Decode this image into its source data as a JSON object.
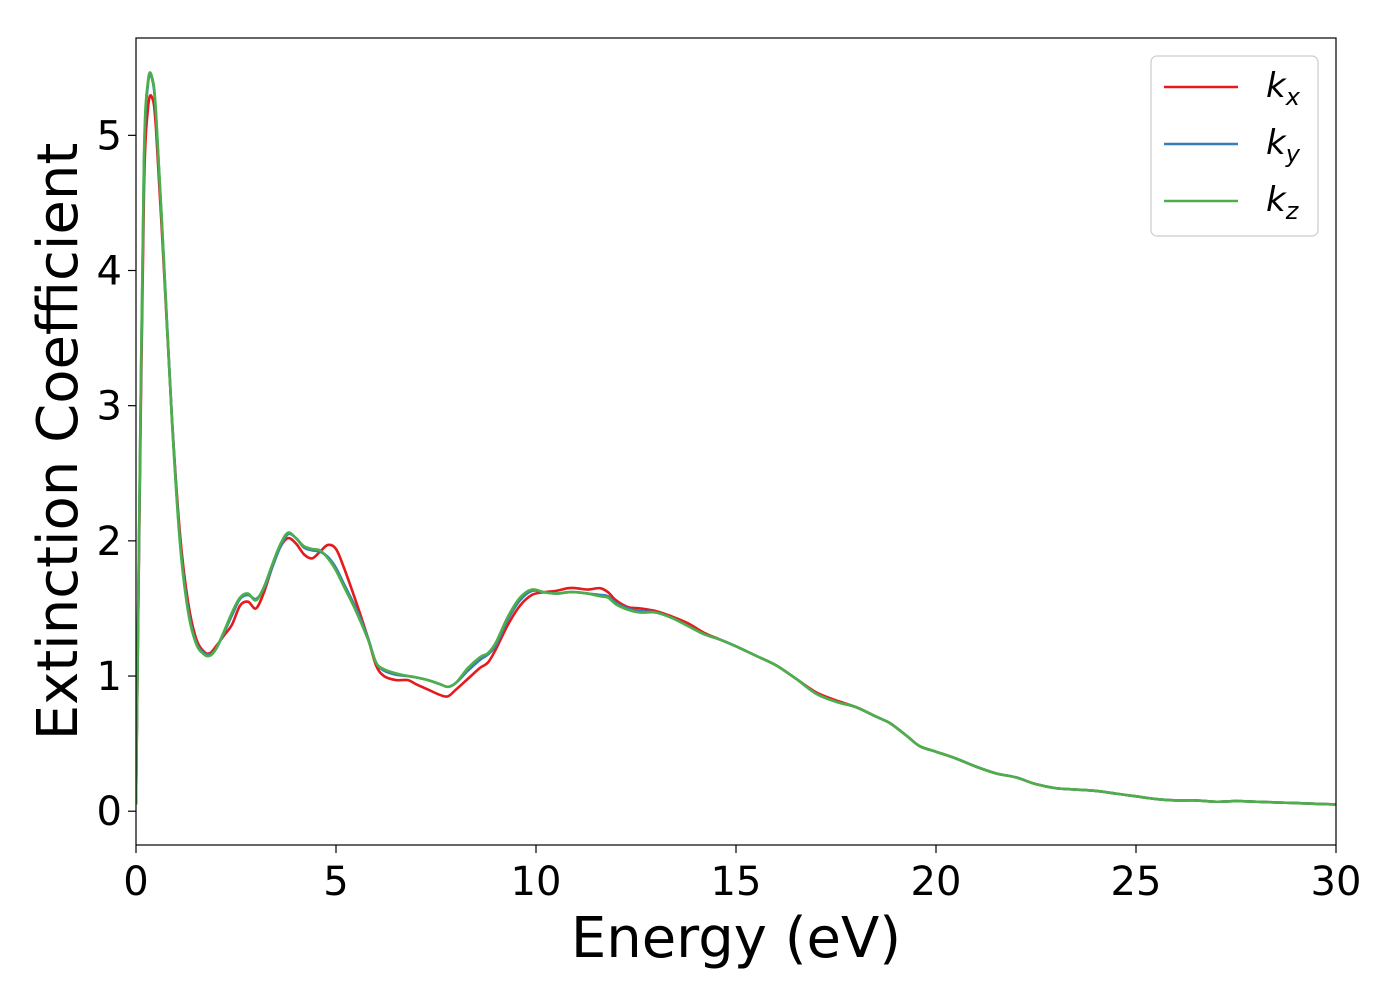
{
  "chart_data": {
    "type": "line",
    "title": "",
    "xlabel": "Energy (eV)",
    "ylabel": "Extinction Coefficient",
    "xlim": [
      0,
      30
    ],
    "ylim": [
      -0.25,
      5.72
    ],
    "xticks": [
      0,
      5,
      10,
      15,
      20,
      25,
      30
    ],
    "yticks": [
      0,
      1,
      2,
      3,
      4,
      5
    ],
    "grid": false,
    "legend_position": "top-right",
    "series": [
      {
        "name": "k",
        "subscript": "x",
        "color": "#e41a1c",
        "x": [
          0,
          0.1,
          0.2,
          0.3,
          0.4,
          0.5,
          0.7,
          0.9,
          1.1,
          1.3,
          1.5,
          1.7,
          1.85,
          2.0,
          2.2,
          2.4,
          2.6,
          2.8,
          3.0,
          3.2,
          3.4,
          3.6,
          3.8,
          4.0,
          4.2,
          4.4,
          4.6,
          4.8,
          5.0,
          5.2,
          5.5,
          5.8,
          6.0,
          6.2,
          6.5,
          6.8,
          7.0,
          7.3,
          7.6,
          7.8,
          8.0,
          8.3,
          8.6,
          8.8,
          9.0,
          9.3,
          9.6,
          9.9,
          10.2,
          10.5,
          10.8,
          11.0,
          11.3,
          11.6,
          11.8,
          12.0,
          12.3,
          12.6,
          13.0,
          13.4,
          13.8,
          14.2,
          14.6,
          15.0,
          15.5,
          16.0,
          16.5,
          17.0,
          17.5,
          18.0,
          18.5,
          18.8,
          19.0,
          19.3,
          19.6,
          20.0,
          20.5,
          21.0,
          21.5,
          22.0,
          22.5,
          23.0,
          23.5,
          24.0,
          24.5,
          25.0,
          25.5,
          26.0,
          26.5,
          27.0,
          27.5,
          28.0,
          28.5,
          29.0,
          29.5,
          30.0
        ],
        "y": [
          0.05,
          2.5,
          4.6,
          5.2,
          5.28,
          5.05,
          4.0,
          2.9,
          2.05,
          1.55,
          1.28,
          1.18,
          1.17,
          1.22,
          1.3,
          1.38,
          1.52,
          1.55,
          1.5,
          1.62,
          1.8,
          1.95,
          2.02,
          1.98,
          1.9,
          1.87,
          1.92,
          1.97,
          1.94,
          1.8,
          1.55,
          1.28,
          1.08,
          1.0,
          0.97,
          0.97,
          0.94,
          0.9,
          0.86,
          0.85,
          0.9,
          0.98,
          1.06,
          1.1,
          1.2,
          1.38,
          1.52,
          1.6,
          1.62,
          1.63,
          1.65,
          1.65,
          1.64,
          1.65,
          1.62,
          1.56,
          1.51,
          1.5,
          1.48,
          1.44,
          1.39,
          1.32,
          1.27,
          1.22,
          1.15,
          1.08,
          0.98,
          0.88,
          0.82,
          0.77,
          0.7,
          0.66,
          0.62,
          0.55,
          0.48,
          0.44,
          0.39,
          0.33,
          0.28,
          0.25,
          0.2,
          0.17,
          0.16,
          0.15,
          0.13,
          0.11,
          0.09,
          0.08,
          0.08,
          0.07,
          0.075,
          0.07,
          0.065,
          0.06,
          0.055,
          0.05
        ]
      },
      {
        "name": "k",
        "subscript": "y",
        "color": "#377eb8",
        "x": [
          0,
          0.1,
          0.2,
          0.3,
          0.4,
          0.5,
          0.7,
          0.9,
          1.1,
          1.3,
          1.5,
          1.7,
          1.85,
          2.0,
          2.2,
          2.4,
          2.6,
          2.8,
          3.0,
          3.2,
          3.4,
          3.6,
          3.8,
          4.0,
          4.2,
          4.4,
          4.6,
          4.8,
          5.0,
          5.2,
          5.5,
          5.8,
          6.0,
          6.2,
          6.5,
          6.8,
          7.0,
          7.3,
          7.6,
          7.8,
          8.0,
          8.3,
          8.6,
          8.8,
          9.0,
          9.3,
          9.6,
          9.9,
          10.2,
          10.5,
          10.8,
          11.0,
          11.3,
          11.6,
          11.8,
          12.0,
          12.3,
          12.6,
          13.0,
          13.4,
          13.8,
          14.2,
          14.6,
          15.0,
          15.5,
          16.0,
          16.5,
          17.0,
          17.5,
          18.0,
          18.5,
          18.8,
          19.0,
          19.3,
          19.6,
          20.0,
          20.5,
          21.0,
          21.5,
          22.0,
          22.5,
          23.0,
          23.5,
          24.0,
          24.5,
          25.0,
          25.5,
          26.0,
          26.5,
          27.0,
          27.5,
          28.0,
          28.5,
          29.0,
          29.5,
          30.0
        ],
        "y": [
          0.05,
          2.6,
          4.8,
          5.38,
          5.42,
          5.15,
          4.05,
          2.9,
          2.0,
          1.5,
          1.25,
          1.17,
          1.16,
          1.2,
          1.32,
          1.45,
          1.57,
          1.6,
          1.57,
          1.65,
          1.8,
          1.95,
          2.05,
          2.02,
          1.95,
          1.93,
          1.92,
          1.88,
          1.8,
          1.68,
          1.5,
          1.28,
          1.1,
          1.04,
          1.01,
          1.0,
          0.99,
          0.97,
          0.94,
          0.92,
          0.95,
          1.04,
          1.12,
          1.16,
          1.23,
          1.42,
          1.56,
          1.63,
          1.62,
          1.61,
          1.62,
          1.62,
          1.61,
          1.6,
          1.59,
          1.54,
          1.5,
          1.48,
          1.47,
          1.43,
          1.37,
          1.31,
          1.27,
          1.22,
          1.15,
          1.08,
          0.98,
          0.87,
          0.81,
          0.77,
          0.7,
          0.66,
          0.62,
          0.55,
          0.48,
          0.44,
          0.39,
          0.33,
          0.28,
          0.25,
          0.2,
          0.17,
          0.16,
          0.15,
          0.13,
          0.11,
          0.09,
          0.08,
          0.08,
          0.07,
          0.075,
          0.07,
          0.065,
          0.06,
          0.055,
          0.05
        ]
      },
      {
        "name": "k",
        "subscript": "z",
        "color": "#4daf4a",
        "x": [
          0,
          0.1,
          0.2,
          0.3,
          0.4,
          0.5,
          0.7,
          0.9,
          1.1,
          1.3,
          1.5,
          1.7,
          1.85,
          2.0,
          2.2,
          2.4,
          2.6,
          2.8,
          3.0,
          3.2,
          3.4,
          3.6,
          3.8,
          4.0,
          4.2,
          4.4,
          4.6,
          4.8,
          5.0,
          5.2,
          5.5,
          5.8,
          6.0,
          6.2,
          6.5,
          6.8,
          7.0,
          7.3,
          7.6,
          7.8,
          8.0,
          8.3,
          8.6,
          8.8,
          9.0,
          9.3,
          9.6,
          9.9,
          10.2,
          10.5,
          10.8,
          11.0,
          11.3,
          11.6,
          11.8,
          12.0,
          12.3,
          12.6,
          13.0,
          13.4,
          13.8,
          14.2,
          14.6,
          15.0,
          15.5,
          16.0,
          16.5,
          17.0,
          17.5,
          18.0,
          18.5,
          18.8,
          19.0,
          19.3,
          19.6,
          20.0,
          20.5,
          21.0,
          21.5,
          22.0,
          22.5,
          23.0,
          23.5,
          24.0,
          24.5,
          25.0,
          25.5,
          26.0,
          26.5,
          27.0,
          27.5,
          28.0,
          28.5,
          29.0,
          29.5,
          30.0
        ],
        "y": [
          0.05,
          2.65,
          4.85,
          5.4,
          5.43,
          5.17,
          4.05,
          2.88,
          1.98,
          1.48,
          1.24,
          1.16,
          1.15,
          1.2,
          1.33,
          1.47,
          1.58,
          1.61,
          1.56,
          1.66,
          1.82,
          1.97,
          2.06,
          2.02,
          1.96,
          1.94,
          1.93,
          1.87,
          1.78,
          1.66,
          1.48,
          1.27,
          1.1,
          1.05,
          1.02,
          1.0,
          0.99,
          0.97,
          0.94,
          0.92,
          0.95,
          1.06,
          1.14,
          1.17,
          1.25,
          1.44,
          1.58,
          1.64,
          1.62,
          1.61,
          1.62,
          1.62,
          1.61,
          1.59,
          1.58,
          1.53,
          1.49,
          1.47,
          1.47,
          1.43,
          1.37,
          1.31,
          1.27,
          1.22,
          1.15,
          1.08,
          0.98,
          0.87,
          0.81,
          0.77,
          0.7,
          0.66,
          0.62,
          0.55,
          0.48,
          0.44,
          0.39,
          0.33,
          0.28,
          0.25,
          0.2,
          0.17,
          0.16,
          0.15,
          0.13,
          0.11,
          0.09,
          0.08,
          0.08,
          0.07,
          0.075,
          0.07,
          0.065,
          0.06,
          0.055,
          0.05
        ]
      }
    ]
  }
}
